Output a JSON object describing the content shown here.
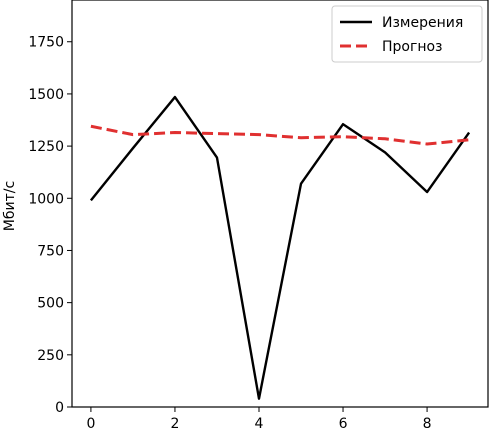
{
  "chart_data": {
    "type": "line",
    "title": "",
    "xlabel": "",
    "ylabel": "Мбит/с",
    "xlim": [
      -0.45,
      9.45
    ],
    "ylim": [
      0,
      1950
    ],
    "x_ticks": [
      0,
      2,
      4,
      6,
      8
    ],
    "y_ticks": [
      0,
      250,
      500,
      750,
      1000,
      1250,
      1500,
      1750
    ],
    "grid": false,
    "legend_position": "top-right",
    "series": [
      {
        "name": "Измерения",
        "color": "#000000",
        "style": "solid",
        "x": [
          0,
          1,
          2,
          3,
          4,
          5,
          6,
          7,
          8,
          9
        ],
        "y": [
          990,
          1240,
          1485,
          1195,
          40,
          1070,
          1355,
          1220,
          1030,
          1315
        ]
      },
      {
        "name": "Прогноз",
        "color": "#e03030",
        "style": "dashed",
        "x": [
          0,
          1,
          2,
          3,
          4,
          5,
          6,
          7,
          8,
          9
        ],
        "y": [
          1345,
          1305,
          1315,
          1310,
          1305,
          1290,
          1295,
          1285,
          1260,
          1280
        ]
      }
    ]
  }
}
